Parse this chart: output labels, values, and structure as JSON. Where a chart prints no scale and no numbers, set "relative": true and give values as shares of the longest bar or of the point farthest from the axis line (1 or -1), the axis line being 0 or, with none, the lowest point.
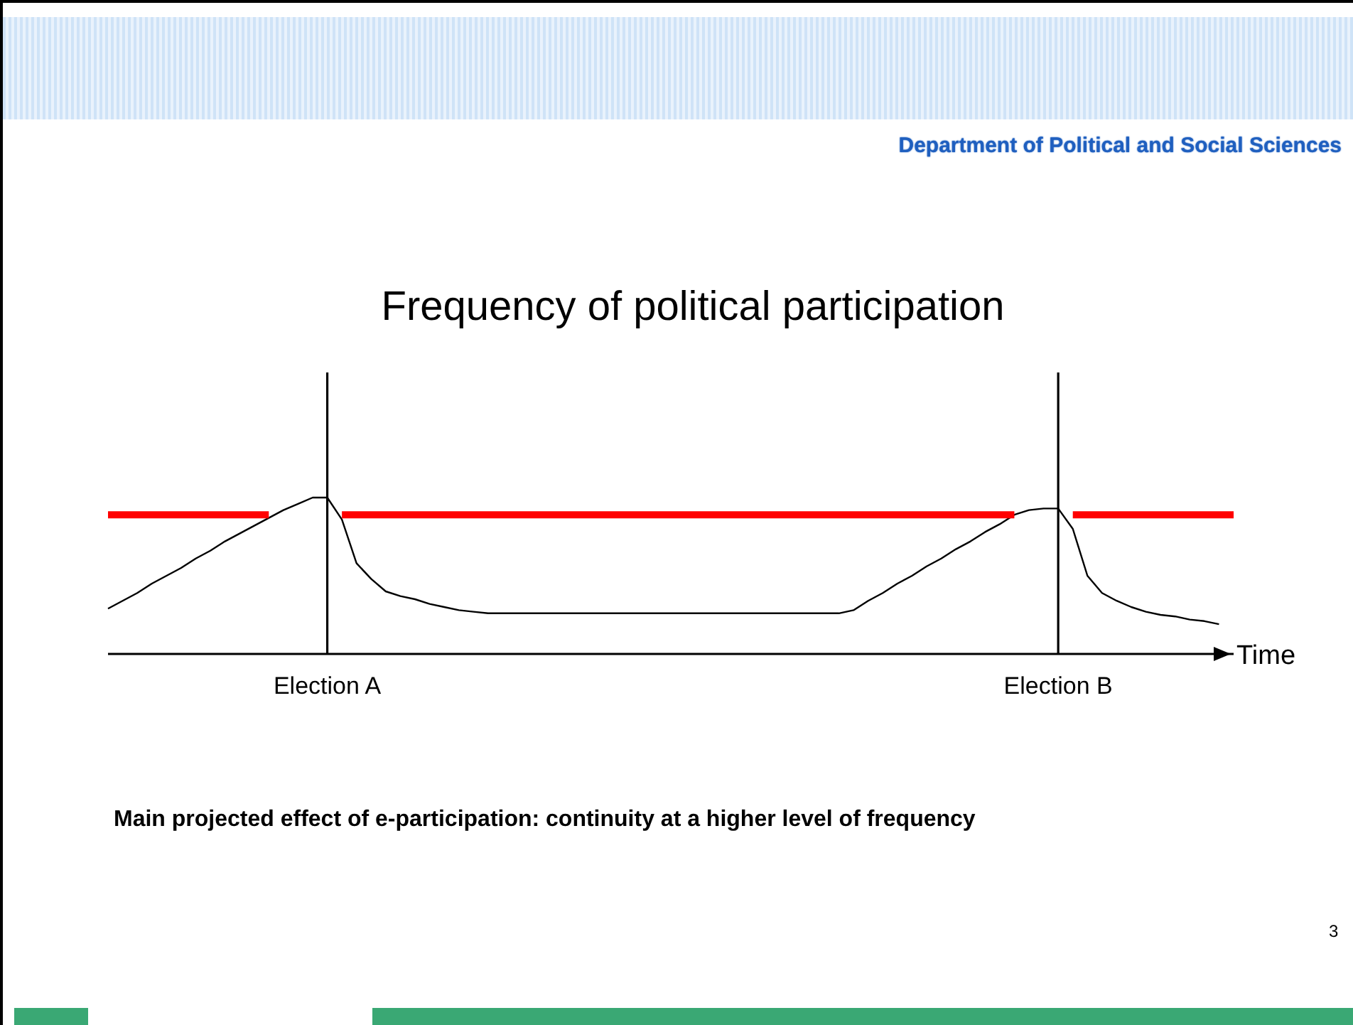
{
  "chart_data": {
    "type": "line",
    "title": "Frequency of political participation",
    "xlabel": "Time",
    "relative": true,
    "marker": "none",
    "line_style": "solid",
    "categories": [
      null,
      null,
      null,
      null,
      null,
      null,
      null,
      null,
      null,
      null,
      null,
      null,
      null,
      null,
      null,
      "Election A",
      null,
      null,
      null,
      null,
      null,
      null,
      null,
      null,
      null,
      null,
      null,
      null,
      null,
      null,
      null,
      null,
      null,
      null,
      null,
      null,
      null,
      null,
      null,
      null,
      null,
      null,
      null,
      null,
      null,
      null,
      null,
      null,
      null,
      null,
      null,
      null,
      null,
      null,
      null,
      null,
      null,
      null,
      null,
      null,
      null,
      null,
      null,
      null,
      null,
      "Election B",
      null,
      null,
      null,
      null,
      null,
      null,
      null,
      null,
      null,
      null,
      null,
      null
    ],
    "series": [
      {
        "color": "#000000",
        "values": [
          0.29,
          0.34,
          0.39,
          0.45,
          0.5,
          0.55,
          0.61,
          0.66,
          0.72,
          0.77,
          0.82,
          0.87,
          0.92,
          0.96,
          1,
          1,
          0.86,
          0.58,
          0.48,
          0.4,
          0.37,
          0.35,
          0.32,
          0.3,
          0.28,
          0.27,
          0.26,
          0.26,
          0.26,
          0.26,
          0.26,
          0.26,
          0.26,
          0.26,
          0.26,
          0.26,
          0.26,
          0.26,
          0.26,
          0.26,
          0.26,
          0.26,
          0.26,
          0.26,
          0.26,
          0.26,
          0.26,
          0.26,
          0.26,
          0.26,
          0.26,
          0.28,
          0.34,
          0.39,
          0.45,
          0.5,
          0.56,
          0.61,
          0.67,
          0.72,
          0.78,
          0.83,
          0.89,
          0.92,
          0.93,
          0.93,
          0.8,
          0.5,
          0.39,
          0.34,
          0.3,
          0.27,
          0.25,
          0.24,
          0.22,
          0.21,
          0.19,
          null
        ]
      },
      {
        "color": "#ff0000",
        "values": [
          0.89,
          0.89,
          0.89,
          0.89,
          0.89,
          0.89,
          0.89,
          0.89,
          0.89,
          0.89,
          0.89,
          0.89,
          null,
          null,
          null,
          null,
          0.89,
          0.89,
          0.89,
          0.89,
          0.89,
          0.89,
          0.89,
          0.89,
          0.89,
          0.89,
          0.89,
          0.89,
          0.89,
          0.89,
          0.89,
          0.89,
          0.89,
          0.89,
          0.89,
          0.89,
          0.89,
          0.89,
          0.89,
          0.89,
          0.89,
          0.89,
          0.89,
          0.89,
          0.89,
          0.89,
          0.89,
          0.89,
          0.89,
          0.89,
          0.89,
          0.89,
          0.89,
          0.89,
          0.89,
          0.89,
          0.89,
          0.89,
          0.89,
          0.89,
          0.89,
          0.89,
          0.89,
          null,
          null,
          null,
          0.89,
          0.89,
          0.89,
          0.89,
          0.89,
          0.89,
          0.89,
          0.89,
          0.89,
          0.89,
          0.89,
          0.89
        ]
      }
    ],
    "ref_lines": [
      {
        "axis": "x",
        "value": "Election A",
        "color": "#000000"
      },
      {
        "axis": "x",
        "value": "Election B",
        "color": "#000000"
      }
    ],
    "annotations": [
      "Department of Political and Social Sciences",
      "Main projected effect of e-participation: continuity at a higher level of frequency",
      "3"
    ]
  }
}
